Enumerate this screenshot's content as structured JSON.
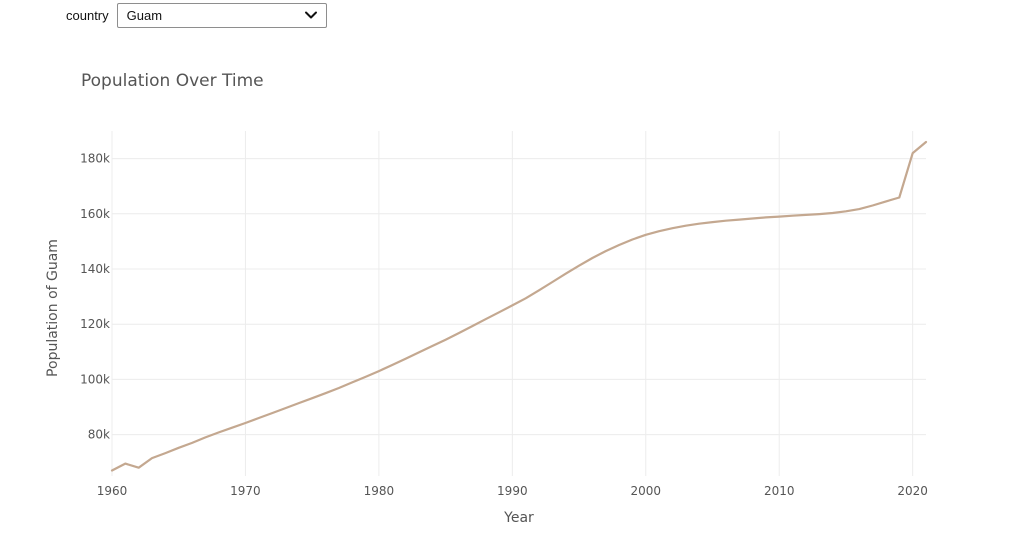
{
  "controls": {
    "country_label": "country",
    "country_value": "Guam",
    "dropdown_icon": "chevron-down-icon"
  },
  "chart_data": {
    "type": "line",
    "title": "Population Over Time",
    "xlabel": "Year",
    "ylabel": "Population of Guam",
    "xlim": [
      1960,
      2021
    ],
    "ylim": [
      65000,
      190000
    ],
    "x_ticks": [
      1960,
      1970,
      1980,
      1990,
      2000,
      2010,
      2020
    ],
    "y_ticks": [
      80000,
      100000,
      120000,
      140000,
      160000,
      180000
    ],
    "x_tick_labels": [
      "1960",
      "1970",
      "1980",
      "1990",
      "2000",
      "2010",
      "2020"
    ],
    "y_tick_labels": [
      "80k",
      "100k",
      "120k",
      "140k",
      "160k",
      "180k"
    ],
    "grid": true,
    "line_color": "#c4a890",
    "series": [
      {
        "x": [
          1960,
          1961,
          1962,
          1963,
          1964,
          1965,
          1966,
          1967,
          1968,
          1969,
          1970,
          1971,
          1972,
          1973,
          1974,
          1975,
          1976,
          1977,
          1978,
          1979,
          1980,
          1981,
          1982,
          1983,
          1984,
          1985,
          1986,
          1987,
          1988,
          1989,
          1990,
          1991,
          1992,
          1993,
          1994,
          1995,
          1996,
          1997,
          1998,
          1999,
          2000,
          2001,
          2002,
          2003,
          2004,
          2005,
          2006,
          2007,
          2008,
          2009,
          2010,
          2011,
          2012,
          2013,
          2014,
          2015,
          2016,
          2017,
          2018,
          2019,
          2020,
          2021
        ],
        "y": [
          67000,
          69500,
          68000,
          71500,
          73300,
          75200,
          77000,
          79000,
          80800,
          82500,
          84200,
          86000,
          87800,
          89600,
          91400,
          93200,
          95000,
          96900,
          98900,
          100900,
          103000,
          105200,
          107500,
          109800,
          112100,
          114400,
          116800,
          119300,
          121800,
          124300,
          126800,
          129400,
          132300,
          135300,
          138300,
          141200,
          144000,
          146500,
          148700,
          150700,
          152400,
          153700,
          154800,
          155700,
          156400,
          157000,
          157500,
          157900,
          158300,
          158700,
          159000,
          159300,
          159600,
          159900,
          160300,
          160900,
          161700,
          163000,
          164500,
          165900,
          182000,
          186000
        ]
      }
    ]
  }
}
